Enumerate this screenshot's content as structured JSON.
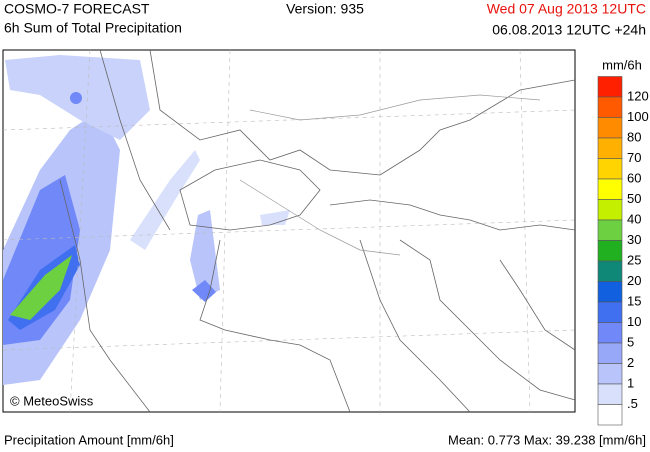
{
  "header": {
    "model": "COSMO-7 FORECAST",
    "product": "6h Sum of Total Precipitation",
    "version": "Version: 935",
    "valid_time": "Wed 07 Aug 2013 12UTC",
    "run_time": "06.08.2013 12UTC +24h"
  },
  "map": {
    "copyright": "© MeteoSwiss"
  },
  "legend": {
    "unit": "mm/6h",
    "labels": [
      "120",
      "100",
      "80",
      "70",
      "60",
      "50",
      "40",
      "30",
      "25",
      "20",
      "15",
      "10",
      "5",
      "2",
      "1",
      ".5"
    ],
    "colors": [
      "#ff2000",
      "#ff5a00",
      "#ff8c00",
      "#ffb000",
      "#ffd400",
      "#ffff00",
      "#c4f000",
      "#6cd040",
      "#20b020",
      "#108878",
      "#1060e0",
      "#4070f0",
      "#7088f8",
      "#98a8f8",
      "#b8c4fa",
      "#d8e0fc",
      "#ffffff"
    ]
  },
  "footer": {
    "left": "Precipitation Amount [mm/6h]",
    "right": "Mean:  0.773 Max:  39.238 [mm/6h]"
  }
}
